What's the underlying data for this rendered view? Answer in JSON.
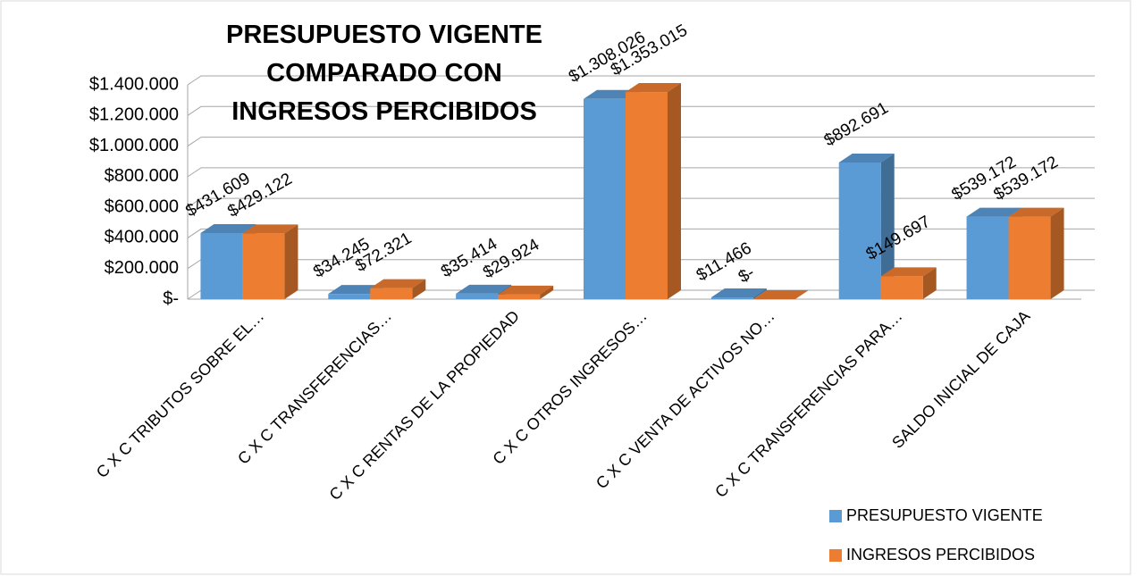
{
  "chart_data": {
    "type": "bar3d",
    "title": [
      "PRESUPUESTO VIGENTE",
      "COMPARADO CON",
      "INGRESOS PERCIBIDOS"
    ],
    "categories": [
      "C X C TRIBUTOS SOBRE EL…",
      "C X C TRANSFERENCIAS…",
      "C X C RENTAS DE LA PROPIEDAD",
      "C X C OTROS INGRESOS…",
      "C X C VENTA DE ACTIVOS NO…",
      "C X C TRANSFERENCIAS PARA…",
      "SALDO INICIAL DE CAJA"
    ],
    "series": [
      {
        "name": "PRESUPUESTO VIGENTE",
        "color": "#5b9bd5",
        "values": [
          431609,
          34245,
          35414,
          1308026,
          11466,
          892691,
          539172
        ],
        "value_labels": [
          "$431.609",
          "$34.245",
          "$35.414",
          "$1.308.026",
          "$11.466",
          "$892.691",
          "$539.172"
        ]
      },
      {
        "name": "INGRESOS PERCIBIDOS",
        "color": "#ed7d31",
        "values": [
          429122,
          72321,
          29924,
          1353015,
          0,
          149697,
          539172
        ],
        "value_labels": [
          "$429.122",
          "$72.321",
          "$29.924",
          "$1.353.015",
          "$-",
          "$149.697",
          "$539.172"
        ]
      }
    ],
    "ylim": [
      0,
      1400000
    ],
    "yticks": [
      {
        "value": 0,
        "label": "$-"
      },
      {
        "value": 200000,
        "label": "$200.000"
      },
      {
        "value": 400000,
        "label": "$400.000"
      },
      {
        "value": 600000,
        "label": "$600.000"
      },
      {
        "value": 800000,
        "label": "$800.000"
      },
      {
        "value": 1000000,
        "label": "$1.000.000"
      },
      {
        "value": 1200000,
        "label": "$1.200.000"
      },
      {
        "value": 1400000,
        "label": "$1.400.000"
      }
    ],
    "grid": true,
    "legend": "bottom-right"
  }
}
